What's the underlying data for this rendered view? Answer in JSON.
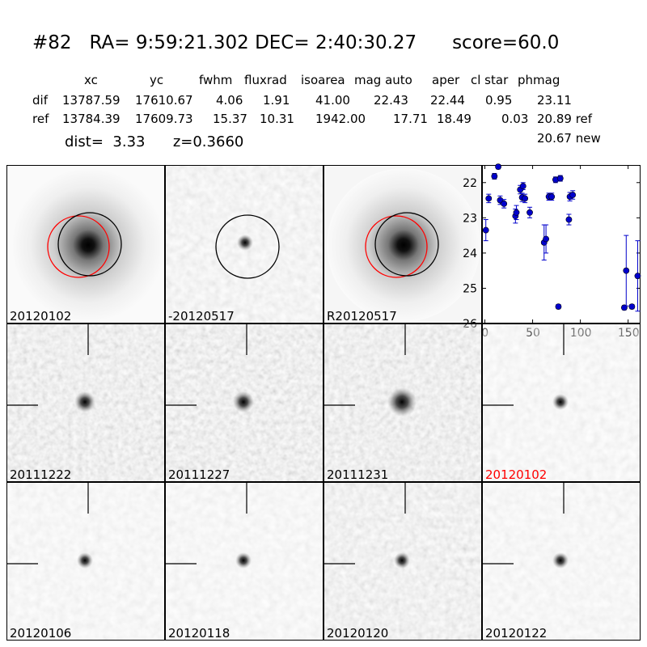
{
  "header": {
    "id": "#82",
    "ra_label": "RA=",
    "ra": "9:59:21.302",
    "dec_label": "DEC=",
    "dec": "2:40:30.27",
    "score_label": "score=",
    "score": "60.0"
  },
  "table": {
    "columns": [
      "xc",
      "yc",
      "fwhm",
      "fluxrad",
      "isoarea",
      "mag auto",
      "aper",
      "cl star",
      "phmag"
    ],
    "rows": [
      {
        "label": "dif",
        "values": [
          "13787.59",
          "17610.67",
          "4.06",
          "1.91",
          "41.00",
          "22.43",
          "22.44",
          "0.95",
          "23.11"
        ]
      },
      {
        "label": "ref",
        "values": [
          "13784.39",
          "17609.73",
          "15.37",
          "10.31",
          "1942.00",
          "17.71",
          "18.49",
          "0.03",
          "20.89 ref"
        ]
      }
    ],
    "phmag_new": "20.67 new"
  },
  "summary": {
    "dist_label": "dist=",
    "dist": "3.33",
    "z_label": "z=",
    "z": "0.3660"
  },
  "top_panels": [
    {
      "label": "20120102",
      "circles": [
        "red",
        "black"
      ],
      "kind": "galaxy"
    },
    {
      "label": "-20120517",
      "circles": [
        "black"
      ],
      "kind": "diff"
    },
    {
      "label": "R20120517",
      "circles": [
        "red",
        "black"
      ],
      "kind": "galaxy"
    }
  ],
  "stamps": [
    {
      "label": "20111222",
      "label_color": "#000000",
      "noise": "high"
    },
    {
      "label": "20111227",
      "label_color": "#000000",
      "noise": "high"
    },
    {
      "label": "20111231",
      "label_color": "#000000",
      "noise": "high"
    },
    {
      "label": "20120102",
      "label_color": "#ff0000",
      "noise": "low"
    },
    {
      "label": "20120106",
      "label_color": "#000000",
      "noise": "low"
    },
    {
      "label": "20120118",
      "label_color": "#000000",
      "noise": "low"
    },
    {
      "label": "20120120",
      "label_color": "#000000",
      "noise": "mid"
    },
    {
      "label": "20120122",
      "label_color": "#000000",
      "noise": "low"
    }
  ],
  "colors": {
    "marker": "#0000cc",
    "red_circle": "#ff0000",
    "black_circle": "#000000"
  },
  "chart_data": {
    "type": "scatter",
    "title": "",
    "xlabel": "",
    "ylabel": "",
    "xlim": [
      -3,
      163
    ],
    "ylim": [
      26,
      21.5
    ],
    "y_inverted": true,
    "xticks": [
      0,
      50,
      100,
      150
    ],
    "yticks": [
      22,
      23,
      24,
      25,
      26
    ],
    "series": [
      {
        "points": [
          {
            "x": 1,
            "y": 23.35,
            "err": 0.3
          },
          {
            "x": 4,
            "y": 22.45,
            "err": 0.12
          },
          {
            "x": 10,
            "y": 21.82,
            "err": 0.08
          },
          {
            "x": 14,
            "y": 21.55,
            "err": 0.06
          },
          {
            "x": 16,
            "y": 22.5,
            "err": 0.12
          },
          {
            "x": 20,
            "y": 22.6,
            "err": 0.12
          },
          {
            "x": 32,
            "y": 22.95,
            "err": 0.2
          },
          {
            "x": 33,
            "y": 22.85,
            "err": 0.2
          },
          {
            "x": 37,
            "y": 22.2,
            "err": 0.12
          },
          {
            "x": 39,
            "y": 22.42,
            "err": 0.12
          },
          {
            "x": 40,
            "y": 22.1,
            "err": 0.1
          },
          {
            "x": 42,
            "y": 22.45,
            "err": 0.12
          },
          {
            "x": 47,
            "y": 22.85,
            "err": 0.15
          },
          {
            "x": 62,
            "y": 23.7,
            "err": 0.5
          },
          {
            "x": 64,
            "y": 23.6,
            "err": 0.4
          },
          {
            "x": 67,
            "y": 22.4,
            "err": 0.1
          },
          {
            "x": 70,
            "y": 22.4,
            "err": 0.1
          },
          {
            "x": 74,
            "y": 21.92,
            "err": 0.08
          },
          {
            "x": 77,
            "y": 25.52,
            "err": 0.06
          },
          {
            "x": 79,
            "y": 21.88,
            "err": 0.08
          },
          {
            "x": 88,
            "y": 23.05,
            "err": 0.15
          },
          {
            "x": 89,
            "y": 22.4,
            "err": 0.12
          },
          {
            "x": 92,
            "y": 22.35,
            "err": 0.12
          },
          {
            "x": 146,
            "y": 25.55,
            "err": 0.06
          },
          {
            "x": 148,
            "y": 24.5,
            "err": 1.0
          },
          {
            "x": 154,
            "y": 25.52,
            "err": 0.06
          },
          {
            "x": 160,
            "y": 24.65,
            "err": 1.0
          }
        ]
      }
    ]
  }
}
